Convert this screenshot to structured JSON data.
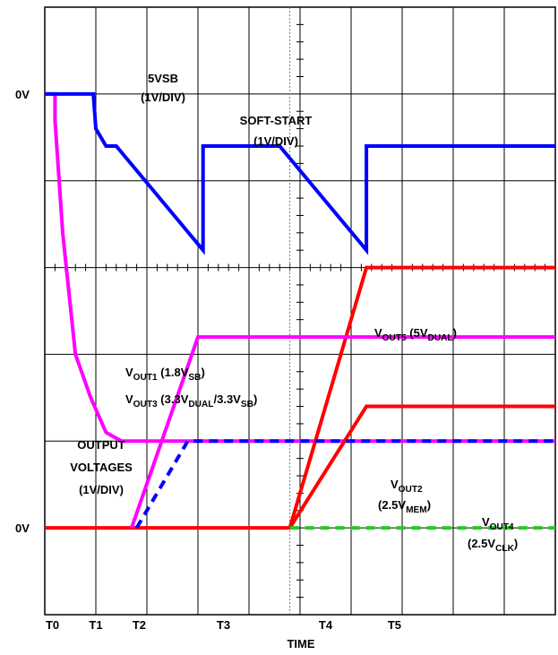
{
  "chart_data": {
    "type": "line",
    "title": "",
    "xlabel": "TIME",
    "ylabel": "",
    "grid": true,
    "x_ticks": [
      "T0",
      "T1",
      "T2",
      "T3",
      "T4",
      "T5"
    ],
    "x_tick_pos": [
      0.15,
      1.0,
      1.85,
      3.5,
      5.5,
      6.85
    ],
    "y_labels": [
      {
        "text": "0V",
        "y": 1.0
      },
      {
        "text": "0V",
        "y": 6.0
      }
    ],
    "annotations": [
      {
        "id": "vsb",
        "lines": [
          "5VSB",
          "(1V/DIV)"
        ]
      },
      {
        "id": "ss",
        "lines": [
          "SOFT-START",
          "(1V/DIV)"
        ]
      },
      {
        "id": "ov",
        "lines": [
          "OUTPUT",
          "VOLTAGES",
          "(1V/DIV)"
        ]
      }
    ],
    "rich_labels": {
      "vout5": [
        [
          "V",
          "n"
        ],
        [
          "OUT5",
          "sub"
        ],
        [
          " (5V",
          "n"
        ],
        [
          "DUAL",
          "sub"
        ],
        [
          ")",
          "n"
        ]
      ],
      "vout1": [
        [
          "V",
          "n"
        ],
        [
          "OUT1",
          "sub"
        ],
        [
          " (1.8V",
          "n"
        ],
        [
          "SB",
          "sub"
        ],
        [
          ")",
          "n"
        ]
      ],
      "vout3": [
        [
          "V",
          "n"
        ],
        [
          "OUT3",
          "sub"
        ],
        [
          " (3.3V",
          "n"
        ],
        [
          "DUAL",
          "sub"
        ],
        [
          "/3.3V",
          "n"
        ],
        [
          "SB",
          "sub"
        ],
        [
          ")",
          "n"
        ]
      ],
      "vout2a": [
        [
          "V",
          "n"
        ],
        [
          "OUT2",
          "sub"
        ]
      ],
      "vout2b": [
        [
          "(2.5V",
          "n"
        ],
        [
          "MEM",
          "sub"
        ],
        [
          ")",
          "n"
        ]
      ],
      "vout4a": [
        [
          "V",
          "n"
        ],
        [
          "OUT4",
          "sub"
        ]
      ],
      "vout4b": [
        [
          "(2.5V",
          "n"
        ],
        [
          "CLK",
          "sub"
        ],
        [
          ")",
          "n"
        ]
      ]
    },
    "series": [
      {
        "key": "vsb",
        "color": "#ff00ff",
        "dash": false,
        "points": [
          [
            0,
            1.0
          ],
          [
            0.2,
            1.0
          ],
          [
            0.2,
            1.3
          ],
          [
            0.35,
            2.6
          ],
          [
            0.6,
            4.0
          ],
          [
            0.9,
            4.5
          ],
          [
            1.2,
            4.9
          ],
          [
            1.5,
            5.0
          ],
          [
            10,
            5.0
          ]
        ]
      },
      {
        "key": "ss",
        "color": "#0000ff",
        "dash": false,
        "points": [
          [
            0,
            1.0
          ],
          [
            0.95,
            1.0
          ],
          [
            1.0,
            1.4
          ],
          [
            1.2,
            1.6
          ],
          [
            1.4,
            1.6
          ],
          [
            3.1,
            2.8
          ],
          [
            3.1,
            1.6
          ],
          [
            4.6,
            1.6
          ],
          [
            6.3,
            2.8
          ],
          [
            6.3,
            1.6
          ],
          [
            10,
            1.6
          ]
        ]
      },
      {
        "key": "vout5",
        "color": "#ff0000",
        "dash": false,
        "points": [
          [
            0,
            6.0
          ],
          [
            4.8,
            6.0
          ],
          [
            6.3,
            3.0
          ],
          [
            10,
            3.0
          ]
        ]
      },
      {
        "key": "vout2",
        "color": "#ff0000",
        "dash": false,
        "points": [
          [
            4.8,
            6.0
          ],
          [
            6.3,
            4.6
          ],
          [
            10,
            4.6
          ]
        ]
      },
      {
        "key": "vout1",
        "color": "#ff00ff",
        "dash": false,
        "points": [
          [
            1.7,
            6.0
          ],
          [
            3.0,
            3.8
          ],
          [
            10,
            3.8
          ]
        ]
      },
      {
        "key": "vout3",
        "color": "#0000ff",
        "dash": true,
        "points": [
          [
            1.8,
            6.0
          ],
          [
            2.8,
            5.0
          ],
          [
            10,
            5.0
          ]
        ]
      },
      {
        "key": "vout4",
        "color": "#22cc22",
        "dash": true,
        "points": [
          [
            4.8,
            6.0
          ],
          [
            10,
            6.0
          ]
        ]
      }
    ]
  }
}
